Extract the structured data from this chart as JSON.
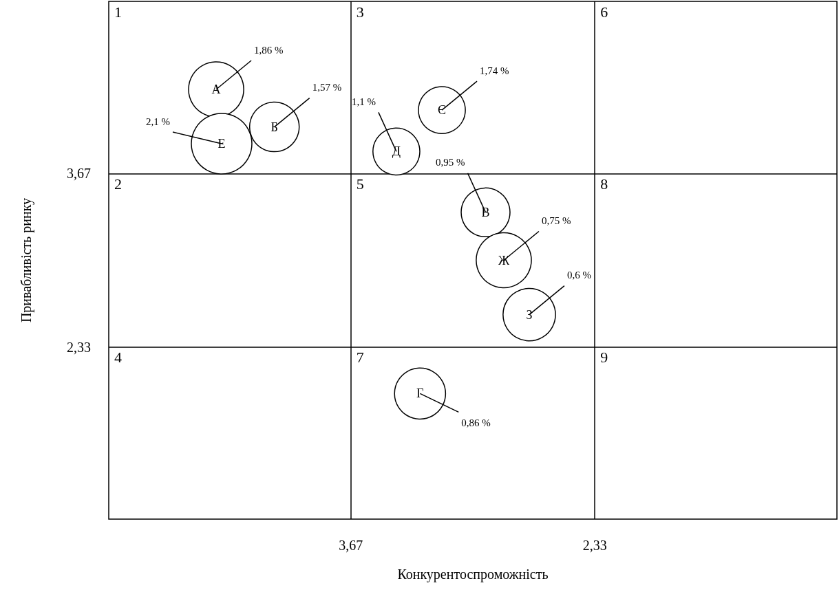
{
  "chart_data": {
    "type": "bubble",
    "xlabel": "Конкурентоспроможність",
    "ylabel": "Привабливість ринку",
    "xlim": [
      5,
      1
    ],
    "ylim": [
      1,
      5
    ],
    "xticks": [
      {
        "value": 3.67,
        "label": "3,67"
      },
      {
        "value": 2.33,
        "label": "2,33"
      }
    ],
    "yticks": [
      {
        "value": 3.67,
        "label": "3,67"
      },
      {
        "value": 2.33,
        "label": "2,33"
      }
    ],
    "grid": true,
    "legend": false,
    "series": [
      {
        "name": "А",
        "color": "#ffffff",
        "x": [
          4.41
        ],
        "values": [
          4.32
        ],
        "sizes": [
          0.83
        ]
      },
      {
        "name": "Б",
        "color": "#ffffff",
        "x": [
          4.09
        ],
        "values": [
          4.03
        ],
        "sizes": [
          0.67
        ]
      },
      {
        "name": "Е",
        "color": "#ffffff",
        "x": [
          4.38
        ],
        "values": [
          3.9
        ],
        "sizes": [
          1
        ]
      },
      {
        "name": "Д",
        "color": "#ffffff",
        "x": [
          3.42
        ],
        "values": [
          3.84
        ],
        "sizes": [
          0.6
        ]
      },
      {
        "name": "Є",
        "color": "#ffffff",
        "x": [
          3.17
        ],
        "values": [
          4.16
        ],
        "sizes": [
          0.6
        ]
      },
      {
        "name": "В",
        "color": "#ffffff",
        "x": [
          2.93
        ],
        "values": [
          3.37
        ],
        "sizes": [
          0.65
        ]
      },
      {
        "name": "Ж",
        "color": "#ffffff",
        "x": [
          2.83
        ],
        "values": [
          3.0
        ],
        "sizes": [
          0.83
        ]
      },
      {
        "name": "З",
        "color": "#ffffff",
        "x": [
          2.69
        ],
        "values": [
          2.58
        ],
        "sizes": [
          0.75
        ]
      },
      {
        "name": "Г",
        "color": "#ffffff",
        "x": [
          3.29
        ],
        "values": [
          1.97
        ],
        "sizes": [
          0.71
        ]
      }
    ],
    "annotations": [
      "1",
      "2",
      "4",
      "3",
      "5",
      "7",
      "6",
      "8",
      "9",
      {
        "text": "1,86 %",
        "x": 4.41,
        "y": 4.32
      },
      {
        "text": "1,57 %",
        "x": 4.09,
        "y": 4.03
      },
      {
        "text": "2,1 %",
        "x": 4.38,
        "y": 3.9
      },
      {
        "text": "1,1 %",
        "x": 3.42,
        "y": 3.84
      },
      {
        "text": "1,74 %",
        "x": 3.17,
        "y": 4.16
      },
      {
        "text": "0,95 %",
        "x": 2.93,
        "y": 3.37
      },
      {
        "text": "0,75 %",
        "x": 2.83,
        "y": 3.0
      },
      {
        "text": "0,6 %",
        "x": 2.69,
        "y": 2.58
      },
      {
        "text": "0,86 %",
        "x": 3.29,
        "y": 1.97
      }
    ]
  }
}
